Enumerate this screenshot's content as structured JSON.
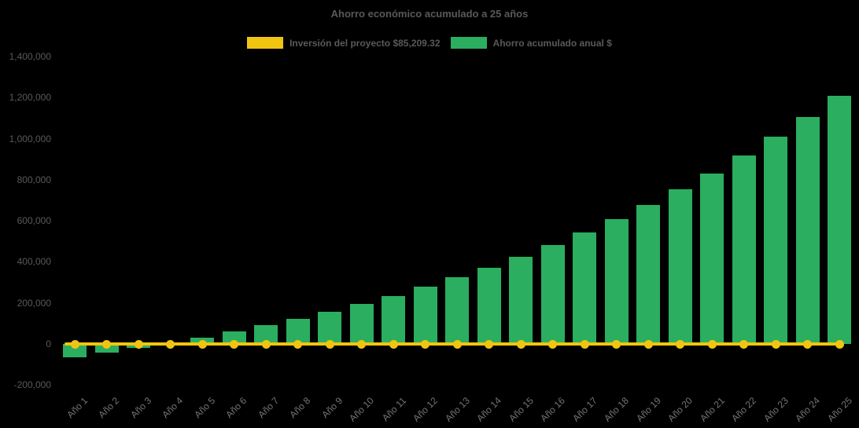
{
  "background": "#000000",
  "text_color": "#595959",
  "axis_text_color": "#747474",
  "chart_data": {
    "type": "bar",
    "title": "Ahorro económico acumulado a 25 años",
    "categories": [
      "Año 1",
      "Año 2",
      "Año 3",
      "Año 4",
      "Año 5",
      "Año 6",
      "Año 7",
      "Año 8",
      "Año 9",
      "Año 10",
      "Año 11",
      "Año 12",
      "Año 13",
      "Año 14",
      "Año 15",
      "Año 16",
      "Año 17",
      "Año 18",
      "Año 19",
      "Año 20",
      "Año 21",
      "Año 22",
      "Año 23",
      "Año 24",
      "Año 25"
    ],
    "series": [
      {
        "name": "Inversión del proyecto $85,209.32",
        "type": "line",
        "color": "#f0c512",
        "marker": "circle",
        "values": [
          0,
          0,
          0,
          0,
          0,
          0,
          0,
          0,
          0,
          0,
          0,
          0,
          0,
          0,
          0,
          0,
          0,
          0,
          0,
          0,
          0,
          0,
          0,
          0,
          0
        ]
      },
      {
        "name": "Ahorro acumulado anual $",
        "type": "bar",
        "color": "#2bae60",
        "values": [
          -65000,
          -44000,
          -21000,
          4000,
          30000,
          59000,
          89000,
          121000,
          156000,
          194000,
          234000,
          277000,
          323000,
          372000,
          425000,
          482000,
          542000,
          608000,
          678000,
          752000,
          828000,
          919000,
          1008000,
          1105000,
          1210000
        ]
      }
    ],
    "ylim": [
      -200000,
      1400000
    ],
    "ytick_step": 200000,
    "ytick_labels": [
      "-200,000",
      "0",
      "200,000",
      "400,000",
      "600,000",
      "800,000",
      "1,000,000",
      "1,200,000",
      "1,400,000"
    ],
    "grid": false,
    "legend_position": "top",
    "x_tick_rotation": -45
  }
}
